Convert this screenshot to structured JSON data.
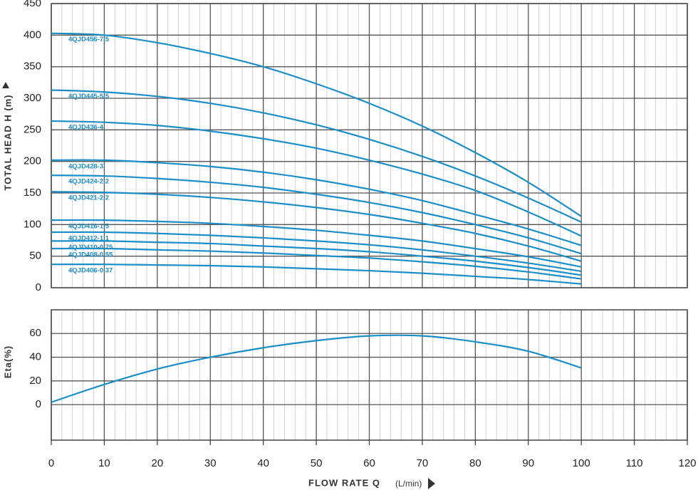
{
  "chart_data": [
    {
      "type": "line",
      "ylabel": "TOTAL HEAD H (m)",
      "x": [
        0,
        10,
        20,
        30,
        40,
        50,
        60,
        70,
        80,
        90,
        100
      ],
      "xlim": [
        0,
        120
      ],
      "ylim": [
        0,
        450
      ],
      "yticks": [
        0,
        50,
        100,
        150,
        200,
        250,
        300,
        350,
        400,
        450
      ],
      "grid": true,
      "series": [
        {
          "name": "4QJD456-7.5",
          "color": "#1b8ec8",
          "values": [
            403,
            400,
            388,
            371,
            350,
            323,
            292,
            256,
            214,
            167,
            113
          ]
        },
        {
          "name": "4QJD445-5.5",
          "color": "#1b8ec8",
          "values": [
            313,
            310,
            303,
            292,
            277,
            258,
            235,
            208,
            177,
            142,
            104
          ]
        },
        {
          "name": "4QJD436-4",
          "color": "#1b8ec8",
          "values": [
            264,
            262,
            257,
            248,
            236,
            221,
            202,
            180,
            154,
            120,
            82
          ]
        },
        {
          "name": "4QJD428-3",
          "color": "#1b8ec8",
          "values": [
            202,
            202,
            198,
            192,
            183,
            171,
            156,
            138,
            116,
            93,
            67
          ]
        },
        {
          "name": "4QJD424-2.2",
          "color": "#1b8ec8",
          "values": [
            178,
            177,
            173,
            167,
            159,
            148,
            135,
            119,
            100,
            79,
            54
          ]
        },
        {
          "name": "4QJD421-2.2",
          "color": "#1b8ec8",
          "values": [
            152,
            151,
            148,
            143,
            136,
            127,
            116,
            102,
            86,
            66,
            42
          ]
        },
        {
          "name": "4QJD416-1.5",
          "color": "#1b8ec8",
          "values": [
            107,
            107,
            105,
            102,
            97,
            91,
            83,
            74,
            62,
            49,
            33
          ]
        },
        {
          "name": "4QJD412-1.1",
          "color": "#1b8ec8",
          "values": [
            88,
            88,
            86,
            83,
            79,
            74,
            68,
            60,
            50,
            39,
            26
          ]
        },
        {
          "name": "4QJD410-0.75",
          "color": "#1b8ec8",
          "values": [
            74,
            74,
            72,
            70,
            66,
            62,
            57,
            50,
            42,
            32,
            20
          ]
        },
        {
          "name": "4QJD408-0.55",
          "color": "#1b8ec8",
          "values": [
            62,
            62,
            60,
            58,
            55,
            51,
            47,
            41,
            34,
            25,
            14
          ]
        },
        {
          "name": "4QJD406-0.37",
          "color": "#1b8ec8",
          "values": [
            37,
            37,
            36,
            35,
            33,
            30,
            27,
            23,
            18,
            13,
            6
          ]
        }
      ]
    },
    {
      "type": "line",
      "ylabel": "Eta(%)",
      "xlabel": "FLOW RATE Q",
      "xunit": "(L/min)",
      "x": [
        0,
        10,
        20,
        30,
        40,
        50,
        60,
        70,
        80,
        90,
        100
      ],
      "xlim": [
        0,
        120
      ],
      "xticks": [
        0,
        10,
        20,
        30,
        40,
        50,
        60,
        70,
        80,
        90,
        100,
        110,
        120
      ],
      "ylim": [
        -30,
        80
      ],
      "yticks": [
        0,
        20,
        40,
        60
      ],
      "grid": true,
      "series": [
        {
          "color": "#1b8ec8",
          "values": [
            2,
            17,
            30,
            40,
            48,
            54,
            58,
            58,
            53,
            45,
            31
          ]
        }
      ]
    }
  ]
}
